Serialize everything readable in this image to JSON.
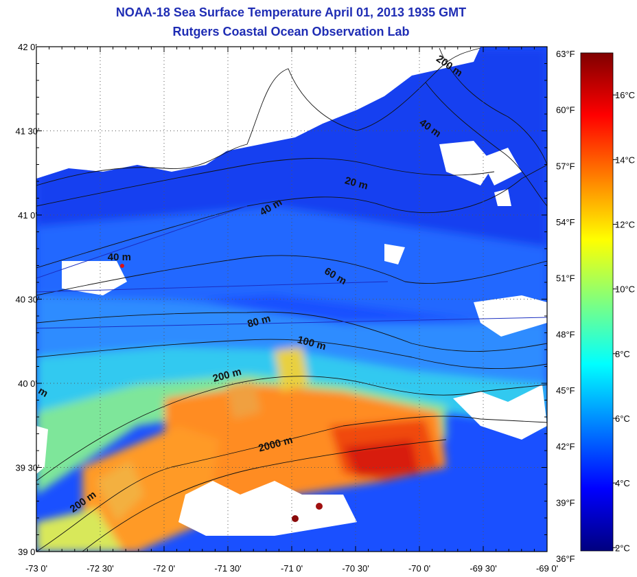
{
  "title": "NOAA-18 Sea Surface Temperature April 01, 2013 1935 GMT",
  "subtitle": "Rutgers Coastal Ocean Observation Lab",
  "map": {
    "lon_range": [
      -73.0,
      -69.0
    ],
    "lat_range": [
      39.0,
      42.0
    ],
    "grid": "dotted",
    "lat_ticks": [
      {
        "value": 42.0,
        "label": "42 0'"
      },
      {
        "value": 41.5,
        "label": "41 30'"
      },
      {
        "value": 41.0,
        "label": "41 0'"
      },
      {
        "value": 40.5,
        "label": "40 30'"
      },
      {
        "value": 40.0,
        "label": "40 0'"
      },
      {
        "value": 39.5,
        "label": "39 30'"
      },
      {
        "value": 39.0,
        "label": "39 0'"
      }
    ],
    "lon_ticks": [
      {
        "value": -73.0,
        "label": "-73 0'"
      },
      {
        "value": -72.5,
        "label": "-72 30'"
      },
      {
        "value": -72.0,
        "label": "-72 0'"
      },
      {
        "value": -71.5,
        "label": "-71 30'"
      },
      {
        "value": -71.0,
        "label": "-71 0'"
      },
      {
        "value": -70.5,
        "label": "-70 30'"
      },
      {
        "value": -70.0,
        "label": "-70 0'"
      },
      {
        "value": -69.5,
        "label": "-69 30'"
      },
      {
        "value": -69.0,
        "label": "-69 0'"
      }
    ],
    "contour_labels": [
      {
        "text": "200 m",
        "lon": -69.78,
        "lat": 41.87,
        "rotate": 35
      },
      {
        "text": "40 m",
        "lon": -69.93,
        "lat": 41.5,
        "rotate": 35
      },
      {
        "text": "20 m",
        "lon": -70.5,
        "lat": 41.17,
        "rotate": 15
      },
      {
        "text": "40 m",
        "lon": -71.15,
        "lat": 41.03,
        "rotate": -30
      },
      {
        "text": "40 m",
        "lon": -72.35,
        "lat": 40.73,
        "rotate": 0
      },
      {
        "text": "60 m",
        "lon": -70.67,
        "lat": 40.62,
        "rotate": 30
      },
      {
        "text": "80 m",
        "lon": -71.25,
        "lat": 40.35,
        "rotate": -15
      },
      {
        "text": "100 m",
        "lon": -70.85,
        "lat": 40.22,
        "rotate": 15
      },
      {
        "text": "200 m",
        "lon": -71.5,
        "lat": 40.03,
        "rotate": -15
      },
      {
        "text": "2000 m",
        "lon": -71.12,
        "lat": 39.62,
        "rotate": -15
      },
      {
        "text": "200 m",
        "lon": -72.62,
        "lat": 39.28,
        "rotate": -35
      },
      {
        "text": "m",
        "lon": -72.96,
        "lat": 39.93,
        "rotate": 30
      }
    ],
    "marker_color": "#e01010"
  },
  "colorbar": {
    "celsius_range": [
      1.9,
      17.3
    ],
    "fahrenheit_ticks": [
      "63°F",
      "60°F",
      "57°F",
      "54°F",
      "51°F",
      "48°F",
      "45°F",
      "42°F",
      "39°F",
      "36°F"
    ],
    "celsius_ticks": [
      "16°C",
      "14°C",
      "12°C",
      "10°C",
      "8°C",
      "6°C",
      "4°C",
      "2°C"
    ],
    "celsius_values": [
      16,
      14,
      12,
      10,
      8,
      6,
      4,
      2
    ],
    "colors": [
      "#00007f",
      "#0000ff",
      "#007fff",
      "#00ffff",
      "#7fff7f",
      "#ffff00",
      "#ff7f00",
      "#ff0000",
      "#7f0000"
    ]
  }
}
